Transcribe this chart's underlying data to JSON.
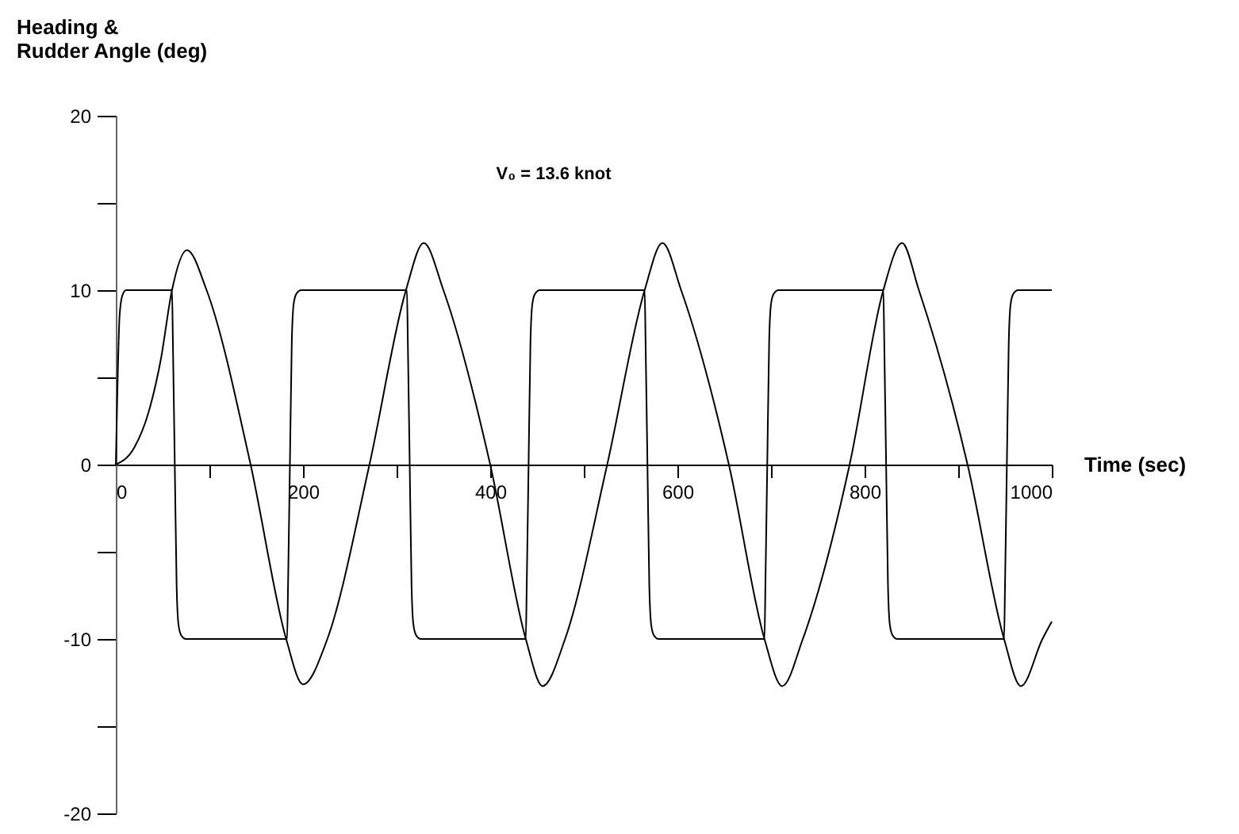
{
  "chart_data": {
    "type": "line",
    "xlabel": "Time (sec)",
    "ylabel": "Heading &\nRudder Angle (deg)",
    "annotations": [
      "V₀ = 13.6 knot"
    ],
    "xlim": [
      0,
      1000
    ],
    "xticks": [
      0,
      {
        "value": 100,
        "label": null
      },
      200,
      {
        "value": 300,
        "label": null
      },
      400,
      {
        "value": 500,
        "label": null
      },
      600,
      {
        "value": 700,
        "label": null
      },
      800,
      {
        "value": 900,
        "label": null
      },
      1000
    ],
    "ylim": [
      -20,
      20
    ],
    "yticks": [
      -20,
      {
        "value": -15,
        "label": null
      },
      -10,
      {
        "value": -5,
        "label": null
      },
      0,
      {
        "value": 5,
        "label": null
      },
      10,
      {
        "value": 15,
        "label": null
      },
      20
    ],
    "series": [
      {
        "color": "#000000",
        "x": [
          0,
          2,
          4,
          7,
          11,
          60,
          61,
          63,
          65,
          67,
          70,
          75,
          183,
          184,
          186,
          188,
          190,
          193,
          198,
          311,
          312,
          314,
          316,
          318,
          321,
          326,
          438,
          439,
          441,
          443,
          445,
          448,
          453,
          565,
          566,
          568,
          570,
          572,
          575,
          580,
          693,
          694,
          696,
          698,
          700,
          703,
          708,
          820,
          821,
          823,
          825,
          827,
          830,
          835,
          949,
          950,
          952,
          954,
          956,
          959,
          964,
          1000
        ],
        "values": [
          0,
          5,
          8.5,
          9.7,
          10,
          10,
          7,
          0,
          -7,
          -9.2,
          -9.8,
          -10,
          -10,
          -7,
          0,
          7,
          9.2,
          9.8,
          10,
          10,
          7,
          0,
          -7,
          -9.2,
          -9.8,
          -10,
          -10,
          -7,
          0,
          7,
          9.2,
          9.8,
          10,
          10,
          7,
          0,
          -7,
          -9.2,
          -9.8,
          -10,
          -10,
          -7,
          0,
          7,
          9.2,
          9.8,
          10,
          10,
          7,
          0,
          -7,
          -9.2,
          -9.8,
          -10,
          -10,
          -7,
          0,
          7,
          9.2,
          9.8,
          10,
          10
        ]
      },
      {
        "color": "#000000",
        "x": [
          0,
          20,
          35,
          48,
          60,
          76,
          97,
          144,
          182,
          200,
          226,
          271,
          310,
          329,
          350,
          400,
          438,
          456,
          480,
          525,
          565,
          584,
          604,
          655,
          693,
          712,
          734,
          784,
          820,
          840,
          858,
          910,
          949,
          967,
          990,
          1000
        ],
        "values": [
          0,
          1,
          3,
          6,
          10,
          12.3,
          10,
          0,
          -10,
          -12.6,
          -10,
          0,
          10,
          12.7,
          10,
          0,
          -10,
          -12.7,
          -10,
          0,
          10,
          12.7,
          10,
          0,
          -10,
          -12.7,
          -10,
          0,
          10,
          12.7,
          10,
          0,
          -10,
          -12.7,
          -10,
          -9
        ]
      }
    ]
  }
}
